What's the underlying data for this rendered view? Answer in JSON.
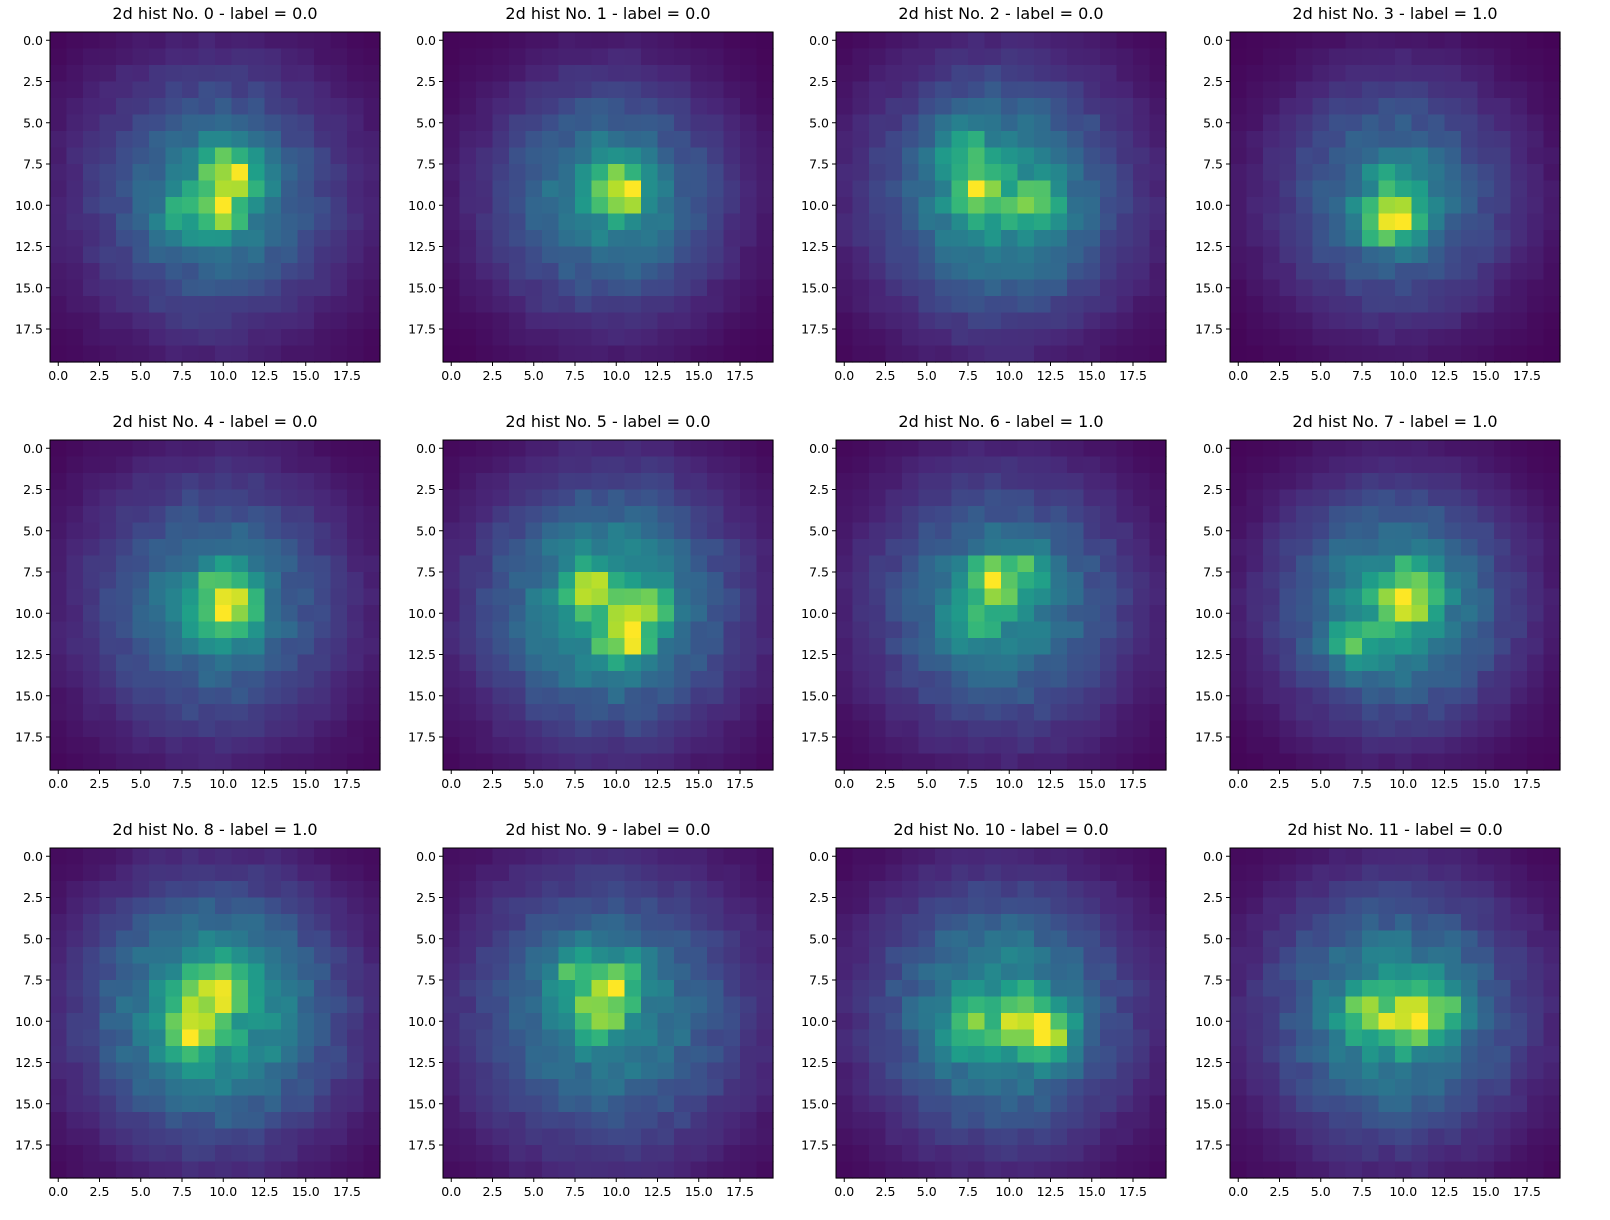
{
  "chart_data": [
    {
      "type": "heatmap",
      "title": "2d hist No. 0 - label = 0.0",
      "label": "0.0",
      "x_range": [
        -0.5,
        19.5
      ],
      "y_range": [
        -0.5,
        19.5
      ],
      "y_inverted": true,
      "xticks": [
        "0.0",
        "2.5",
        "5.0",
        "7.5",
        "10.0",
        "12.5",
        "15.0",
        "17.5"
      ],
      "yticks": [
        "0.0",
        "2.5",
        "5.0",
        "7.5",
        "10.0",
        "12.5",
        "15.0",
        "17.5"
      ],
      "colormap": "viridis",
      "grid": false,
      "shape": [
        20,
        20
      ],
      "peaks": [
        {
          "row": 7.5,
          "col": 10,
          "v": 0.85
        },
        {
          "row": 10.5,
          "col": 10,
          "v": 1.0
        },
        {
          "row": 8.5,
          "col": 11,
          "v": 0.9
        },
        {
          "row": 10.5,
          "col": 7.5,
          "v": 0.6
        }
      ],
      "spread": 5.5
    },
    {
      "type": "heatmap",
      "title": "2d hist No. 1 - label = 0.0",
      "label": "0.0",
      "x_range": [
        -0.5,
        19.5
      ],
      "y_range": [
        -0.5,
        19.5
      ],
      "y_inverted": true,
      "xticks": [
        "0.0",
        "2.5",
        "5.0",
        "7.5",
        "10.0",
        "12.5",
        "15.0",
        "17.5"
      ],
      "yticks": [
        "0.0",
        "2.5",
        "5.0",
        "7.5",
        "10.0",
        "12.5",
        "15.0",
        "17.5"
      ],
      "colormap": "viridis",
      "grid": false,
      "shape": [
        20,
        20
      ],
      "peaks": [
        {
          "row": 9.5,
          "col": 10.5,
          "v": 1.0
        },
        {
          "row": 8.5,
          "col": 9.5,
          "v": 0.75
        }
      ],
      "spread": 5.0
    },
    {
      "type": "heatmap",
      "title": "2d hist No. 2 - label = 0.0",
      "label": "0.0",
      "x_range": [
        -0.5,
        19.5
      ],
      "y_range": [
        -0.5,
        19.5
      ],
      "y_inverted": true,
      "xticks": [
        "0.0",
        "2.5",
        "5.0",
        "7.5",
        "10.0",
        "12.5",
        "15.0",
        "17.5"
      ],
      "yticks": [
        "0.0",
        "2.5",
        "5.0",
        "7.5",
        "10.0",
        "12.5",
        "15.0",
        "17.5"
      ],
      "colormap": "viridis",
      "grid": false,
      "shape": [
        20,
        20
      ],
      "peaks": [
        {
          "row": 9.5,
          "col": 8,
          "v": 1.0
        },
        {
          "row": 10,
          "col": 11.5,
          "v": 0.8
        },
        {
          "row": 6.5,
          "col": 7,
          "v": 0.6
        }
      ],
      "spread": 5.5
    },
    {
      "type": "heatmap",
      "title": "2d hist No. 3 - label = 1.0",
      "label": "1.0",
      "x_range": [
        -0.5,
        19.5
      ],
      "y_range": [
        -0.5,
        19.5
      ],
      "y_inverted": true,
      "xticks": [
        "0.0",
        "2.5",
        "5.0",
        "7.5",
        "10.0",
        "12.5",
        "15.0",
        "17.5"
      ],
      "yticks": [
        "0.0",
        "2.5",
        "5.0",
        "7.5",
        "10.0",
        "12.5",
        "15.0",
        "17.5"
      ],
      "colormap": "viridis",
      "grid": false,
      "shape": [
        20,
        20
      ],
      "peaks": [
        {
          "row": 11,
          "col": 10,
          "v": 1.0
        },
        {
          "row": 11,
          "col": 8.5,
          "v": 0.85
        },
        {
          "row": 8.5,
          "col": 9.5,
          "v": 0.55
        }
      ],
      "spread": 5.0
    },
    {
      "type": "heatmap",
      "title": "2d hist No. 4 - label = 0.0",
      "label": "0.0",
      "x_range": [
        -0.5,
        19.5
      ],
      "y_range": [
        -0.5,
        19.5
      ],
      "y_inverted": true,
      "xticks": [
        "0.0",
        "2.5",
        "5.0",
        "7.5",
        "10.0",
        "12.5",
        "15.0",
        "17.5"
      ],
      "yticks": [
        "0.0",
        "2.5",
        "5.0",
        "7.5",
        "10.0",
        "12.5",
        "15.0",
        "17.5"
      ],
      "colormap": "viridis",
      "grid": false,
      "shape": [
        20,
        20
      ],
      "peaks": [
        {
          "row": 10,
          "col": 11,
          "v": 1.0
        },
        {
          "row": 10,
          "col": 9.5,
          "v": 0.8
        },
        {
          "row": 8,
          "col": 10,
          "v": 0.7
        }
      ],
      "spread": 5.5
    },
    {
      "type": "heatmap",
      "title": "2d hist No. 5 - label = 0.0",
      "label": "0.0",
      "x_range": [
        -0.5,
        19.5
      ],
      "y_range": [
        -0.5,
        19.5
      ],
      "y_inverted": true,
      "xticks": [
        "0.0",
        "2.5",
        "5.0",
        "7.5",
        "10.0",
        "12.5",
        "15.0",
        "17.5"
      ],
      "yticks": [
        "0.0",
        "2.5",
        "5.0",
        "7.5",
        "10.0",
        "12.5",
        "15.0",
        "17.5"
      ],
      "colormap": "viridis",
      "grid": false,
      "shape": [
        20,
        20
      ],
      "peaks": [
        {
          "row": 11.5,
          "col": 10.5,
          "v": 1.0
        },
        {
          "row": 8.5,
          "col": 8.5,
          "v": 0.7
        },
        {
          "row": 9.5,
          "col": 12,
          "v": 0.6
        }
      ],
      "spread": 5.5
    },
    {
      "type": "heatmap",
      "title": "2d hist No. 6 - label = 1.0",
      "label": "1.0",
      "x_range": [
        -0.5,
        19.5
      ],
      "y_range": [
        -0.5,
        19.5
      ],
      "y_inverted": true,
      "xticks": [
        "0.0",
        "2.5",
        "5.0",
        "7.5",
        "10.0",
        "12.5",
        "15.0",
        "17.5"
      ],
      "yticks": [
        "0.0",
        "2.5",
        "5.0",
        "7.5",
        "10.0",
        "12.5",
        "15.0",
        "17.5"
      ],
      "colormap": "viridis",
      "grid": false,
      "shape": [
        20,
        20
      ],
      "peaks": [
        {
          "row": 8,
          "col": 9,
          "v": 1.0
        },
        {
          "row": 10.5,
          "col": 8,
          "v": 0.75
        },
        {
          "row": 7.5,
          "col": 11,
          "v": 0.65
        }
      ],
      "spread": 5.5
    },
    {
      "type": "heatmap",
      "title": "2d hist No. 7 - label = 1.0",
      "label": "1.0",
      "x_range": [
        -0.5,
        19.5
      ],
      "y_range": [
        -0.5,
        19.5
      ],
      "y_inverted": true,
      "xticks": [
        "0.0",
        "2.5",
        "5.0",
        "7.5",
        "10.0",
        "12.5",
        "15.0",
        "17.5"
      ],
      "yticks": [
        "0.0",
        "2.5",
        "5.0",
        "7.5",
        "10.0",
        "12.5",
        "15.0",
        "17.5"
      ],
      "colormap": "viridis",
      "grid": false,
      "shape": [
        20,
        20
      ],
      "peaks": [
        {
          "row": 9.5,
          "col": 10,
          "v": 1.0
        },
        {
          "row": 12,
          "col": 7,
          "v": 0.6
        },
        {
          "row": 8,
          "col": 11,
          "v": 0.55
        }
      ],
      "spread": 5.0
    },
    {
      "type": "heatmap",
      "title": "2d hist No. 8 - label = 1.0",
      "label": "1.0",
      "x_range": [
        -0.5,
        19.5
      ],
      "y_range": [
        -0.5,
        19.5
      ],
      "y_inverted": true,
      "xticks": [
        "0.0",
        "2.5",
        "5.0",
        "7.5",
        "10.0",
        "12.5",
        "15.0",
        "17.5"
      ],
      "yticks": [
        "0.0",
        "2.5",
        "5.0",
        "7.5",
        "10.0",
        "12.5",
        "15.0",
        "17.5"
      ],
      "colormap": "viridis",
      "grid": false,
      "shape": [
        20,
        20
      ],
      "peaks": [
        {
          "row": 8,
          "col": 9.5,
          "v": 1.0
        },
        {
          "row": 10.5,
          "col": 8,
          "v": 0.85
        }
      ],
      "spread": 5.5
    },
    {
      "type": "heatmap",
      "title": "2d hist No. 9 - label = 0.0",
      "label": "0.0",
      "x_range": [
        -0.5,
        19.5
      ],
      "y_range": [
        -0.5,
        19.5
      ],
      "y_inverted": true,
      "xticks": [
        "0.0",
        "2.5",
        "5.0",
        "7.5",
        "10.0",
        "12.5",
        "15.0",
        "17.5"
      ],
      "yticks": [
        "0.0",
        "2.5",
        "5.0",
        "7.5",
        "10.0",
        "12.5",
        "15.0",
        "17.5"
      ],
      "colormap": "viridis",
      "grid": false,
      "shape": [
        20,
        20
      ],
      "peaks": [
        {
          "row": 9.5,
          "col": 9,
          "v": 1.0
        },
        {
          "row": 7.5,
          "col": 10,
          "v": 0.9
        },
        {
          "row": 7,
          "col": 7.5,
          "v": 0.75
        }
      ],
      "spread": 6.0
    },
    {
      "type": "heatmap",
      "title": "2d hist No. 10 - label = 0.0",
      "label": "0.0",
      "x_range": [
        -0.5,
        19.5
      ],
      "y_range": [
        -0.5,
        19.5
      ],
      "y_inverted": true,
      "xticks": [
        "0.0",
        "2.5",
        "5.0",
        "7.5",
        "10.0",
        "12.5",
        "15.0",
        "17.5"
      ],
      "yticks": [
        "0.0",
        "2.5",
        "5.0",
        "7.5",
        "10.0",
        "12.5",
        "15.0",
        "17.5"
      ],
      "colormap": "viridis",
      "grid": false,
      "shape": [
        20,
        20
      ],
      "peaks": [
        {
          "row": 10,
          "col": 11,
          "v": 1.0
        },
        {
          "row": 11,
          "col": 12.5,
          "v": 0.95
        },
        {
          "row": 10.5,
          "col": 7.5,
          "v": 0.6
        }
      ],
      "spread": 5.5
    },
    {
      "type": "heatmap",
      "title": "2d hist No. 11 - label = 0.0",
      "label": "0.0",
      "x_range": [
        -0.5,
        19.5
      ],
      "y_range": [
        -0.5,
        19.5
      ],
      "y_inverted": true,
      "xticks": [
        "0.0",
        "2.5",
        "5.0",
        "7.5",
        "10.0",
        "12.5",
        "15.0",
        "17.5"
      ],
      "yticks": [
        "0.0",
        "2.5",
        "5.0",
        "7.5",
        "10.0",
        "12.5",
        "15.0",
        "17.5"
      ],
      "colormap": "viridis",
      "grid": false,
      "shape": [
        20,
        20
      ],
      "peaks": [
        {
          "row": 10,
          "col": 10,
          "v": 1.0
        },
        {
          "row": 9,
          "col": 12,
          "v": 0.8
        },
        {
          "row": 9.5,
          "col": 7.5,
          "v": 0.65
        }
      ],
      "spread": 5.5
    }
  ]
}
